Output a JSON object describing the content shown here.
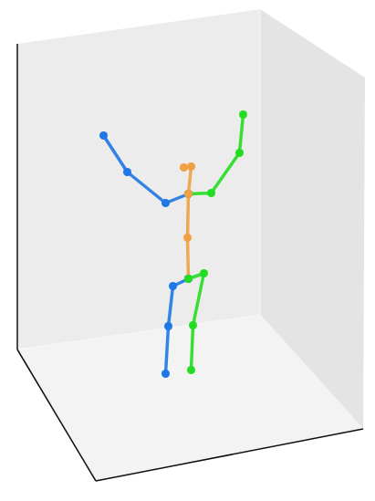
{
  "chart_data": {
    "type": "line",
    "marker": "circle",
    "tick_labels": false,
    "xlim": [
      0,
      411
    ],
    "ylim": [
      0,
      549
    ],
    "series": [
      {
        "color": "#1f77e6",
        "x": [
          113,
          139,
          181,
          206
        ],
        "values": [
          401,
          361,
          327,
          337
        ]
      },
      {
        "color": "#22dd22",
        "x": [
          206,
          231,
          262,
          266
        ],
        "values": [
          337,
          338,
          382,
          424
        ]
      },
      {
        "color": "#f0a040",
        "x": [
          201,
          209,
          206,
          205,
          206
        ],
        "values": [
          366,
          367,
          337,
          289,
          244
        ]
      },
      {
        "color": "#1f77e6",
        "x": [
          206,
          189,
          184,
          181
        ],
        "values": [
          244,
          236,
          192,
          140
        ]
      },
      {
        "color": "#22dd22",
        "x": [
          206,
          223,
          211,
          209
        ],
        "values": [
          244,
          250,
          193,
          144
        ]
      }
    ]
  }
}
